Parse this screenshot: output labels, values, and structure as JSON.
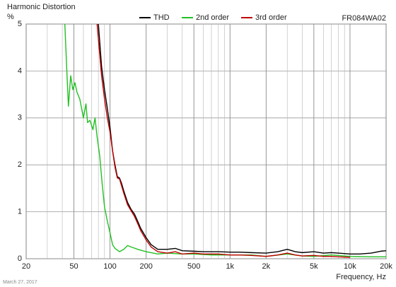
{
  "chart_data": {
    "type": "line",
    "title": "Harmonic Distortion",
    "y_label": "%",
    "model": "FR084WA02",
    "x_label": "Frequency, Hz",
    "date": "March 27, 2017",
    "log_x": true,
    "grid": true,
    "legend_position": "top",
    "xlim": [
      20,
      20000
    ],
    "ylim": [
      0,
      5
    ],
    "xticks": [
      20,
      50,
      100,
      200,
      500,
      {
        "value": 1000,
        "label": "1k"
      },
      {
        "value": 2000,
        "label": "2k"
      },
      {
        "value": 5000,
        "label": "5k"
      },
      {
        "value": 10000,
        "label": "10k"
      },
      {
        "value": 20000,
        "label": "20k"
      }
    ],
    "xminorticks": [
      30,
      40,
      60,
      70,
      80,
      90,
      300,
      400,
      600,
      700,
      800,
      900,
      3000,
      4000,
      6000,
      7000,
      8000,
      9000
    ],
    "yticks": [
      0,
      1,
      2,
      3,
      4,
      5
    ],
    "series": [
      {
        "name": "THD",
        "color": "#000000",
        "x": [
          80,
          85,
          90,
          95,
          100,
          105,
          110,
          115,
          120,
          125,
          130,
          140,
          150,
          160,
          170,
          180,
          200,
          220,
          250,
          300,
          350,
          400,
          500,
          600,
          700,
          800,
          1000,
          1200,
          1500,
          2000,
          2500,
          3000,
          3500,
          4000,
          5000,
          6000,
          7000,
          8000,
          10000,
          12000,
          15000,
          18000,
          20000
        ],
        "values": [
          5.0,
          4.1,
          3.6,
          3.2,
          2.8,
          2.3,
          2.0,
          1.75,
          1.72,
          1.6,
          1.45,
          1.2,
          1.05,
          0.95,
          0.8,
          0.65,
          0.45,
          0.3,
          0.2,
          0.2,
          0.22,
          0.17,
          0.16,
          0.15,
          0.15,
          0.15,
          0.14,
          0.14,
          0.13,
          0.12,
          0.15,
          0.2,
          0.15,
          0.13,
          0.15,
          0.12,
          0.13,
          0.12,
          0.1,
          0.1,
          0.12,
          0.16,
          0.17
        ]
      },
      {
        "name": "2nd order",
        "color": "#22c022",
        "x": [
          42,
          44,
          45,
          47,
          49,
          51,
          53,
          56,
          60,
          63,
          65,
          68,
          72,
          75,
          78,
          82,
          86,
          90,
          95,
          100,
          105,
          110,
          120,
          130,
          140,
          150,
          170,
          200,
          250,
          300,
          400,
          500,
          700,
          1000,
          1500,
          2000,
          3000,
          4000,
          5000,
          7000,
          10000,
          15000,
          20000
        ],
        "values": [
          5.0,
          3.8,
          3.25,
          3.9,
          3.6,
          3.75,
          3.55,
          3.4,
          3.0,
          3.3,
          2.9,
          2.95,
          2.75,
          3.0,
          2.6,
          2.2,
          1.6,
          1.1,
          0.8,
          0.55,
          0.3,
          0.22,
          0.15,
          0.2,
          0.28,
          0.25,
          0.2,
          0.15,
          0.1,
          0.12,
          0.1,
          0.1,
          0.08,
          0.08,
          0.08,
          0.05,
          0.1,
          0.06,
          0.05,
          0.08,
          0.05,
          0.04,
          0.04
        ]
      },
      {
        "name": "3rd order",
        "color": "#c00000",
        "x": [
          78,
          85,
          90,
          95,
          100,
          105,
          110,
          115,
          120,
          130,
          140,
          150,
          160,
          170,
          180,
          200,
          220,
          250,
          300,
          350,
          400,
          500,
          600,
          700,
          800,
          1000,
          1200,
          1500,
          2000,
          2500,
          3000,
          3500,
          4000,
          5000,
          6000,
          7000,
          8000,
          10000
        ],
        "values": [
          5.0,
          3.9,
          3.4,
          3.0,
          2.7,
          2.3,
          1.95,
          1.72,
          1.7,
          1.4,
          1.15,
          1.02,
          0.9,
          0.75,
          0.6,
          0.4,
          0.25,
          0.15,
          0.12,
          0.15,
          0.1,
          0.12,
          0.1,
          0.1,
          0.1,
          0.08,
          0.08,
          0.07,
          0.05,
          0.08,
          0.12,
          0.08,
          0.06,
          0.07,
          0.05,
          0.05,
          0.04,
          0.03
        ]
      }
    ]
  }
}
